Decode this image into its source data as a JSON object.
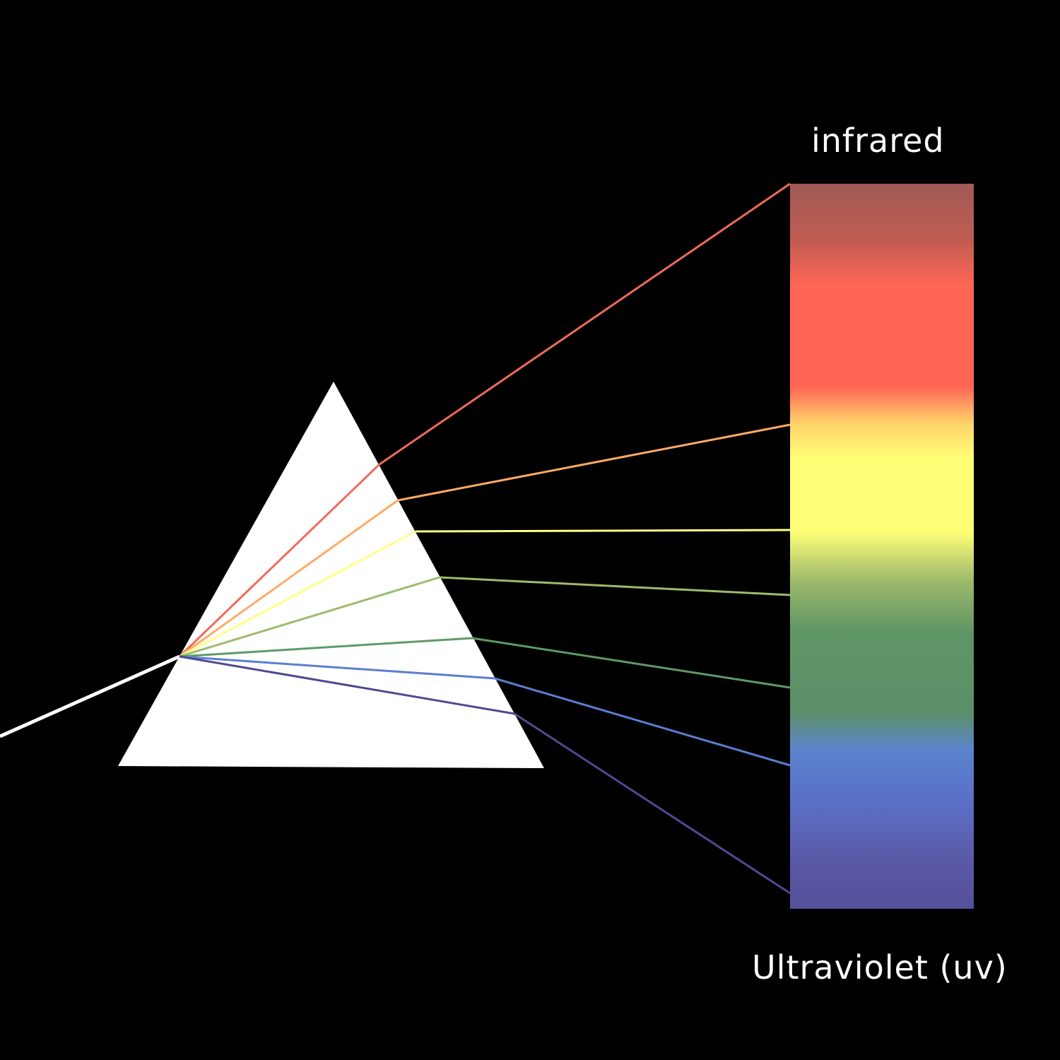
{
  "labels": {
    "top": "infrared",
    "bottom": "Ultraviolet (uv)"
  },
  "colors": {
    "background": "#000000",
    "prism": "#ffffff",
    "incident_beam": "#ffffff"
  },
  "spectrum_band_colors": [
    "#a05a55",
    "#c25c52",
    "#ff6655",
    "#ff6655",
    "#ffd26a",
    "#ffff77",
    "#ffff77",
    "#9bb86a",
    "#5e9565",
    "#5c8f69",
    "#5b84cc",
    "#5a70c8",
    "#5b5aa8",
    "#55509a"
  ],
  "rays": [
    {
      "name": "red-ray",
      "color": "#f06a5a"
    },
    {
      "name": "orange-ray",
      "color": "#ffaa66"
    },
    {
      "name": "yellow-ray",
      "color": "#ffff88"
    },
    {
      "name": "yellow-green-ray",
      "color": "#9dbb6c"
    },
    {
      "name": "green-ray",
      "color": "#5f9a68"
    },
    {
      "name": "blue-ray",
      "color": "#5a7ed0"
    },
    {
      "name": "violet-ray",
      "color": "#4e4a90"
    }
  ]
}
